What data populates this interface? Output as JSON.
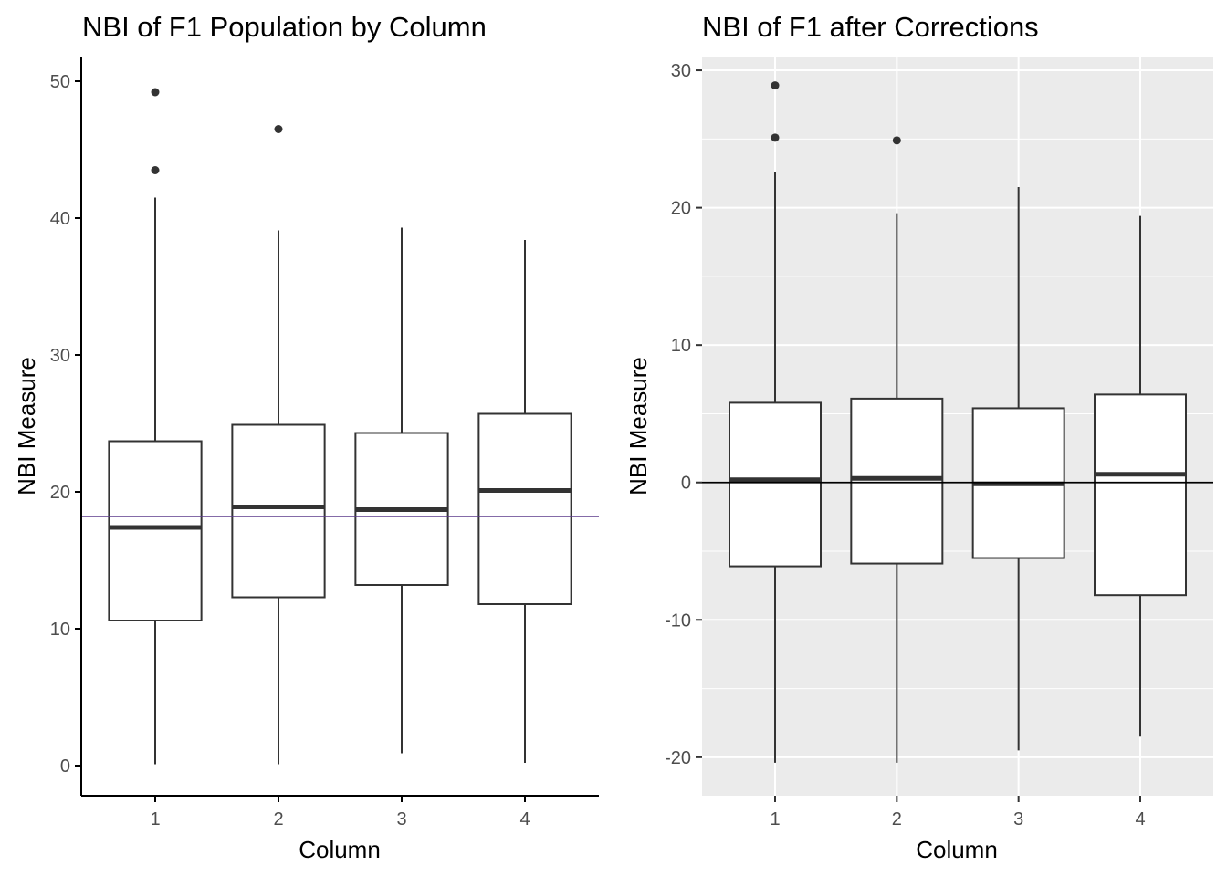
{
  "chart_data": [
    {
      "type": "boxplot",
      "title": "NBI of F1 Population by Column",
      "xlabel": "Column",
      "ylabel": "NBI Measure",
      "theme": "classic",
      "grid": false,
      "ylim": [
        -2.2,
        51.8
      ],
      "yticks": [
        0,
        10,
        20,
        30,
        40,
        50
      ],
      "categories": [
        "1",
        "2",
        "3",
        "4"
      ],
      "boxes": [
        {
          "category": "1",
          "min": 0.1,
          "q1": 10.6,
          "median": 17.4,
          "q3": 23.7,
          "max": 41.5,
          "outliers": [
            43.5,
            49.2
          ]
        },
        {
          "category": "2",
          "min": 0.1,
          "q1": 12.3,
          "median": 18.9,
          "q3": 24.9,
          "max": 39.1,
          "outliers": [
            46.5
          ]
        },
        {
          "category": "3",
          "min": 0.9,
          "q1": 13.2,
          "median": 18.7,
          "q3": 24.3,
          "max": 39.3,
          "outliers": []
        },
        {
          "category": "4",
          "min": 0.2,
          "q1": 11.8,
          "median": 20.1,
          "q3": 25.7,
          "max": 38.4,
          "outliers": []
        }
      ],
      "reference_line": {
        "y": 18.2,
        "color": "#5b3a8c"
      }
    },
    {
      "type": "boxplot",
      "title": "NBI of F1 after Corrections",
      "xlabel": "Column",
      "ylabel": "NBI Measure",
      "theme": "gray",
      "grid": true,
      "ylim": [
        -22.8,
        31.0
      ],
      "yticks": [
        -20,
        -10,
        0,
        10,
        20,
        30
      ],
      "categories": [
        "1",
        "2",
        "3",
        "4"
      ],
      "boxes": [
        {
          "category": "1",
          "min": -20.4,
          "q1": -6.1,
          "median": 0.2,
          "q3": 5.8,
          "max": 22.6,
          "outliers": [
            25.1,
            28.9
          ]
        },
        {
          "category": "2",
          "min": -20.4,
          "q1": -5.9,
          "median": 0.3,
          "q3": 6.1,
          "max": 19.6,
          "outliers": [
            24.9
          ]
        },
        {
          "category": "3",
          "min": -19.5,
          "q1": -5.5,
          "median": -0.1,
          "q3": 5.4,
          "max": 21.5,
          "outliers": []
        },
        {
          "category": "4",
          "min": -18.5,
          "q1": -8.2,
          "median": 0.6,
          "q3": 6.4,
          "max": 19.4,
          "outliers": []
        }
      ],
      "reference_line": {
        "y": 0,
        "color": "#000000"
      }
    }
  ]
}
